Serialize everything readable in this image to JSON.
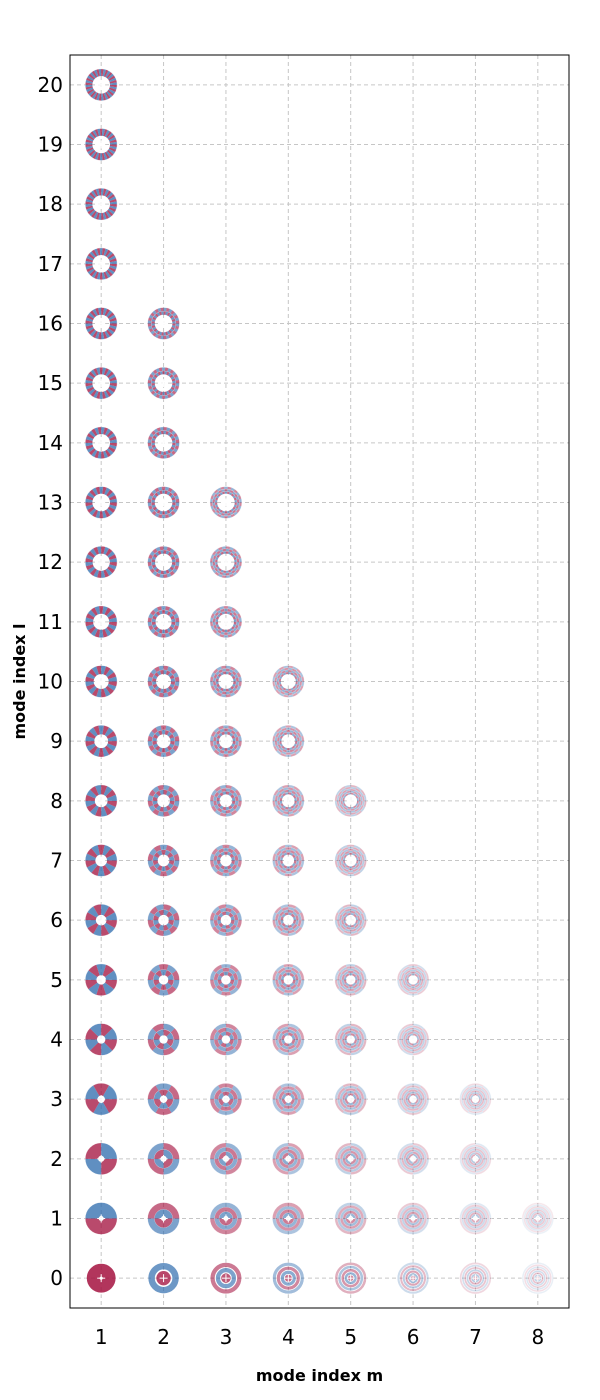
{
  "chart_data": {
    "type": "scatter",
    "title": "",
    "xlabel": "mode index m",
    "ylabel": "mode index l",
    "x_ticks": [
      "1",
      "2",
      "3",
      "4",
      "5",
      "6",
      "7",
      "8"
    ],
    "y_ticks": [
      "0",
      "1",
      "2",
      "3",
      "4",
      "5",
      "6",
      "7",
      "8",
      "9",
      "10",
      "11",
      "12",
      "13",
      "14",
      "15",
      "16",
      "17",
      "18",
      "19",
      "20"
    ],
    "xlim": [
      0.5,
      8.5
    ],
    "ylim": [
      -0.5,
      20.5
    ],
    "grid": true,
    "grid_style": "dashed",
    "marker": "mode-pattern",
    "colors": {
      "positive": "#a4123f",
      "negative": "#2f6cae",
      "grid": "#c6c6c6",
      "frame": "#000000"
    },
    "max_l_per_m": [
      20,
      16,
      13,
      10,
      8,
      5,
      3,
      1
    ],
    "points_note": "mode pattern shown for every m and every l from 0 to max_l_per_m[m-1]"
  }
}
